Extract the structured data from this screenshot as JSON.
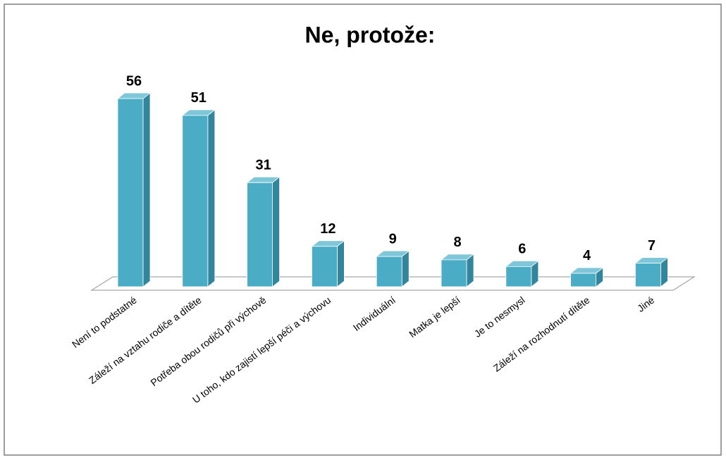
{
  "chart_data": {
    "type": "bar",
    "title": "Ne, protože:",
    "categories": [
      "Není to podstatné",
      "Záleží na vztahu rodiče a dítěte",
      "Potřeba obou rodičů při výchově",
      "U toho, kdo zajistí lepší péči a výchovu",
      "Individuální",
      "Matka je lepší",
      "Je to nesmysl",
      "Záleží na rozhodnutí dítěte",
      "Jiné"
    ],
    "values": [
      56,
      51,
      31,
      12,
      9,
      8,
      6,
      4,
      7
    ],
    "color": "#4bacc6"
  }
}
